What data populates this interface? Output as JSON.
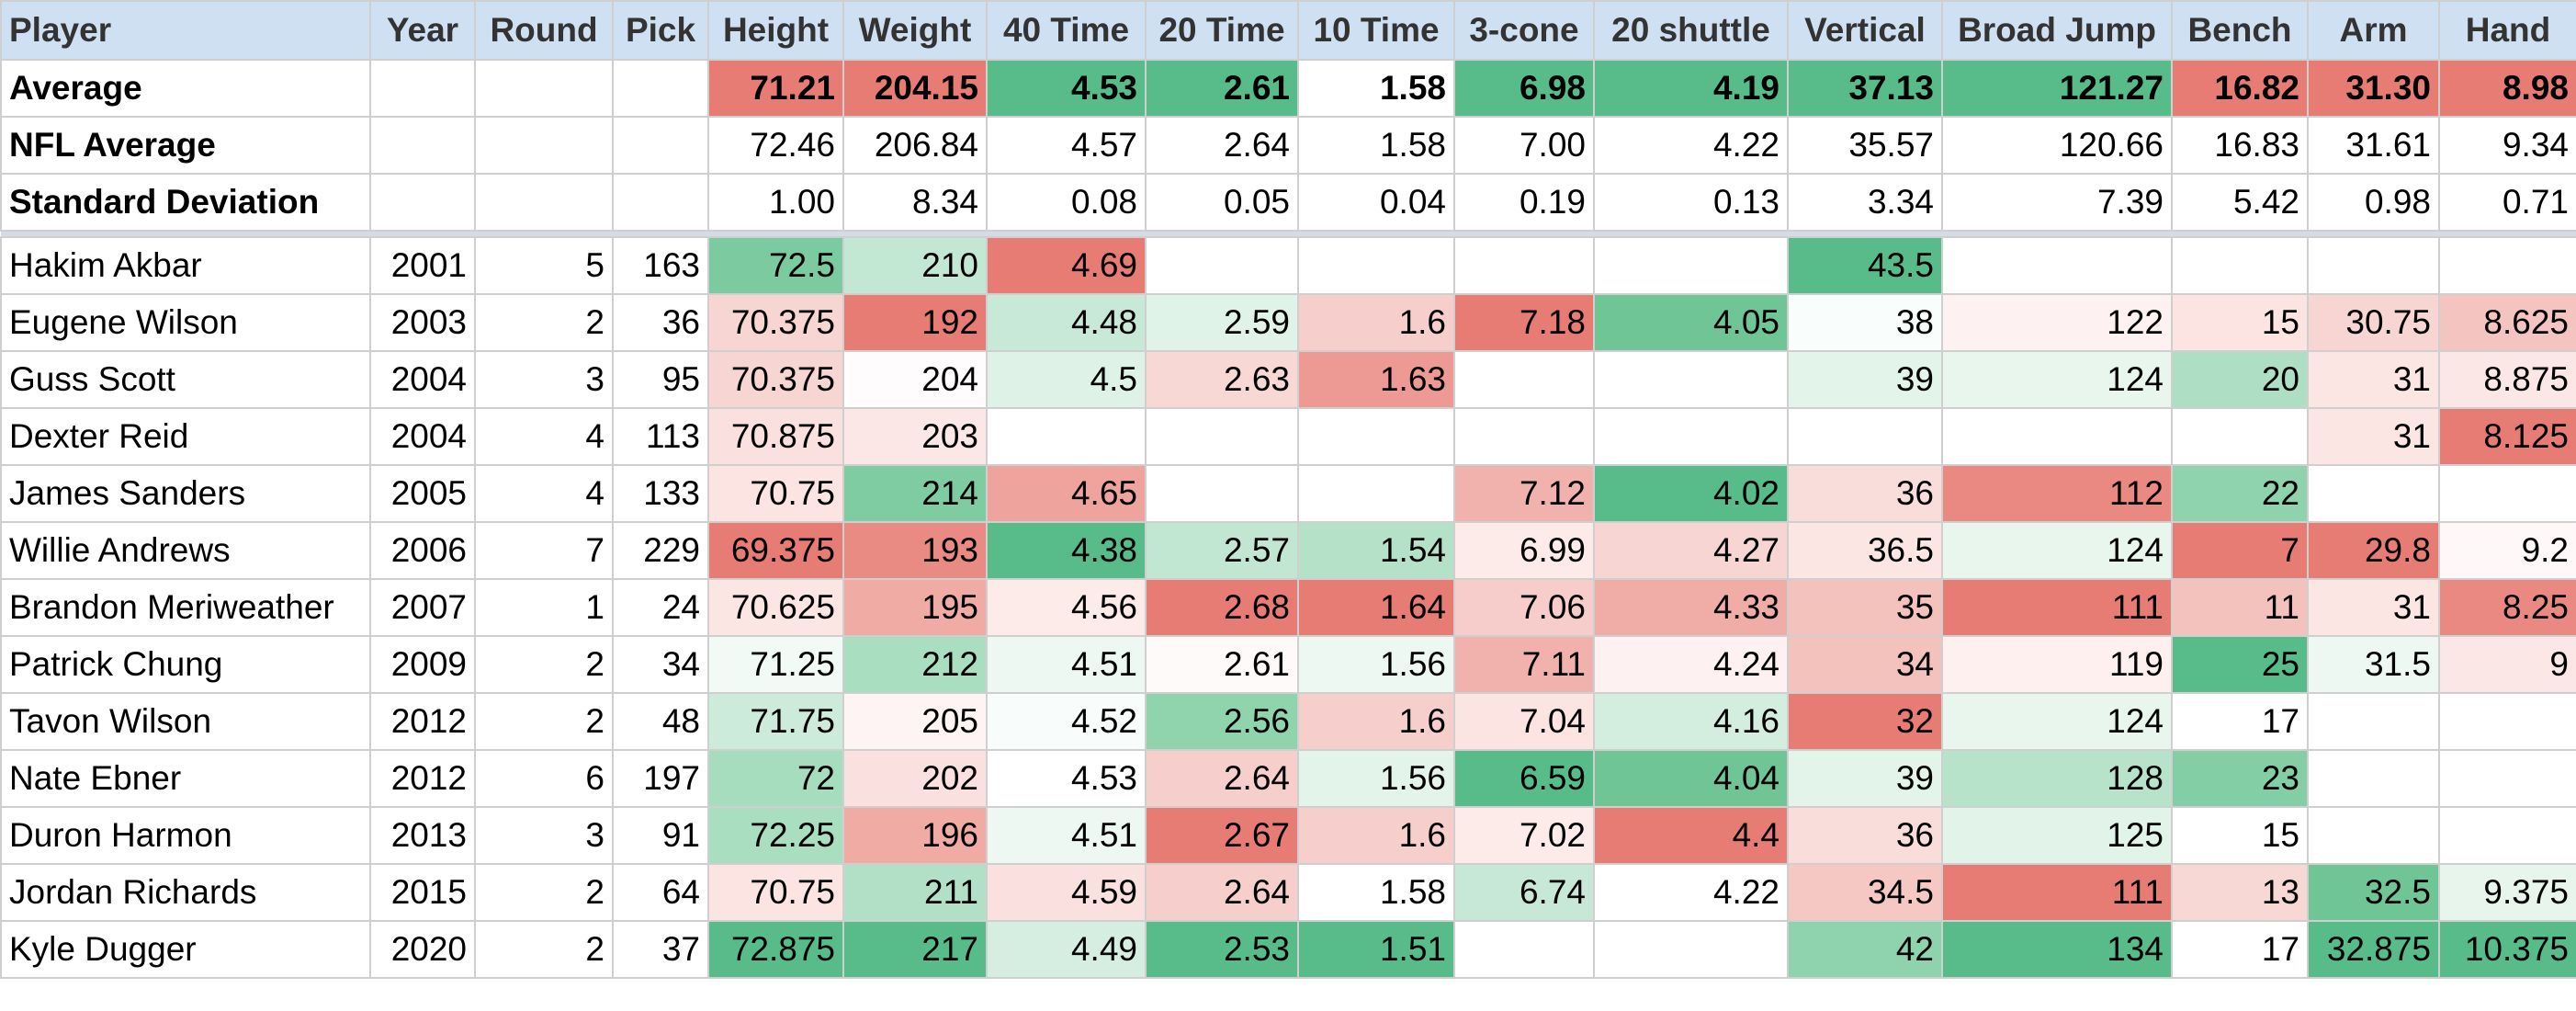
{
  "table": {
    "header": [
      "Player",
      "Year",
      "Round",
      "Pick",
      "Height",
      "Weight",
      "40 Time",
      "20 Time",
      "10 Time",
      "3-cone",
      "20 shuttle",
      "Vertical",
      "Broad Jump",
      "Bench",
      "Arm",
      "Hand"
    ],
    "summary_rows": [
      {
        "cells": [
          "Average",
          null,
          null,
          null,
          "71.21",
          "204.15",
          "4.53",
          "2.61",
          "1.58",
          "6.98",
          "4.19",
          "37.13",
          "121.27",
          "16.82",
          "31.30",
          "8.98"
        ],
        "colors": [
          "#e67c73",
          "#e67c73",
          "#57bb8a",
          "#57bb8a",
          null,
          "#57bb8a",
          "#57bb8a",
          "#57bb8a",
          "#57bb8a",
          "#e67c73",
          "#e67c73",
          "#e67c73"
        ]
      },
      {
        "cells": [
          "NFL Average",
          null,
          null,
          null,
          "72.46",
          "206.84",
          "4.57",
          "2.64",
          "1.58",
          "7.00",
          "4.22",
          "35.57",
          "120.66",
          "16.83",
          "31.61",
          "9.34"
        ],
        "colors": [
          null,
          null,
          null,
          null,
          null,
          null,
          null,
          null,
          null,
          null,
          null,
          null
        ]
      },
      {
        "cells": [
          "Standard Deviation",
          null,
          null,
          null,
          "1.00",
          "8.34",
          "0.08",
          "0.05",
          "0.04",
          "0.19",
          "0.13",
          "3.34",
          "7.39",
          "5.42",
          "0.98",
          "0.71"
        ],
        "colors": [
          null,
          null,
          null,
          null,
          null,
          null,
          null,
          null,
          null,
          null,
          null,
          null
        ]
      }
    ],
    "rows": [
      {
        "cells": [
          "Hakim Akbar",
          "2001",
          "5",
          "163",
          "72.5",
          "210",
          "4.69",
          null,
          null,
          null,
          null,
          "43.5",
          null,
          null,
          null,
          null
        ],
        "colors": [
          "#7ccba0",
          "#c2e7d3",
          "#e67c73",
          null,
          null,
          null,
          null,
          "#57bb8a",
          null,
          null,
          null,
          null
        ]
      },
      {
        "cells": [
          "Eugene Wilson",
          "2003",
          "2",
          "36",
          "70.375",
          "192",
          "4.48",
          "2.59",
          "1.6",
          "7.18",
          "4.05",
          "38",
          "122",
          "15",
          "30.75",
          "8.625"
        ],
        "colors": [
          "#f7d5d2",
          "#e67c73",
          "#c8e9d7",
          "#e0f3e8",
          "#f6cfcc",
          "#e67c73",
          "#6fc596",
          "#f9fdfb",
          "#fdf2f1",
          "#fbe4e2",
          "#f7d5d2",
          "#f4c4c0"
        ]
      },
      {
        "cells": [
          "Guss Scott",
          "2004",
          "3",
          "95",
          "70.375",
          "204",
          "4.5",
          "2.63",
          "1.63",
          null,
          null,
          "39",
          "124",
          "20",
          "31",
          "8.875"
        ],
        "colors": [
          "#f7d5d2",
          "#fefcfc",
          "#def2e7",
          "#f8d8d5",
          "#ec9a93",
          null,
          null,
          "#e3f4ea",
          "#e8f6ee",
          "#aedfc4",
          "#fbe6e4",
          "#fbe8e6"
        ]
      },
      {
        "cells": [
          "Dexter Reid",
          "2004",
          "4",
          "113",
          "70.875",
          "203",
          null,
          null,
          null,
          null,
          null,
          null,
          null,
          null,
          "31",
          "8.125"
        ],
        "colors": [
          "#fae1df",
          "#fbe8e6",
          null,
          null,
          null,
          null,
          null,
          null,
          null,
          null,
          "#fbe6e4",
          "#e67c73"
        ]
      },
      {
        "cells": [
          "James Sanders",
          "2005",
          "4",
          "133",
          "70.75",
          "214",
          "4.65",
          null,
          null,
          "7.12",
          "4.02",
          "36",
          "112",
          "22",
          null,
          null
        ],
        "colors": [
          "#fbe4e2",
          "#7fcca2",
          "#eea39d",
          null,
          null,
          "#f1b2ad",
          "#57bb8a",
          "#f9dddb",
          "#e98981",
          "#8ed3ad",
          null,
          null
        ]
      },
      {
        "cells": [
          "Willie Andrews",
          "2006",
          "7",
          "229",
          "69.375",
          "193",
          "4.38",
          "2.57",
          "1.54",
          "6.99",
          "4.27",
          "36.5",
          "124",
          "7",
          "29.8",
          "9.2"
        ],
        "colors": [
          "#e67c73",
          "#ea8b83",
          "#57bb8a",
          "#c1e6d2",
          "#b4e1c8",
          "#fcebe9",
          "#f7d5d2",
          "#fbe6e4",
          "#e8f6ee",
          "#e67c73",
          "#e67c73",
          "#fef9f8"
        ]
      },
      {
        "cells": [
          "Brandon Meriweather",
          "2007",
          "1",
          "24",
          "70.625",
          "195",
          "4.56",
          "2.68",
          "1.64",
          "7.06",
          "4.33",
          "35",
          "111",
          "11",
          "31",
          "8.25"
        ],
        "colors": [
          "#fbe6e4",
          "#f0aba5",
          "#fcebe9",
          "#e67c73",
          "#e67c73",
          "#f6cdca",
          "#f0aca6",
          "#f4c2bd",
          "#e67c73",
          "#f4c2bd",
          "#fbe6e4",
          "#e98981"
        ]
      },
      {
        "cells": [
          "Patrick Chung",
          "2009",
          "2",
          "34",
          "71.25",
          "212",
          "4.51",
          "2.61",
          "1.56",
          "7.11",
          "4.24",
          "34",
          "119",
          "25",
          "31.5",
          "9"
        ],
        "colors": [
          "#f1faf5",
          "#a9dec1",
          "#eef8f2",
          "#fefafa",
          "#eef8f2",
          "#f1b2ad",
          "#fdf2f1",
          "#f4c2bd",
          "#fdf0ef",
          "#57bb8a",
          "#eef8f2",
          "#fbe8e6"
        ]
      },
      {
        "cells": [
          "Tavon Wilson",
          "2012",
          "2",
          "48",
          "71.75",
          "205",
          "4.52",
          "2.56",
          "1.6",
          "7.04",
          "4.16",
          "32",
          "124",
          "17",
          null,
          null
        ],
        "colors": [
          "#cdebdb",
          "#fdf4f3",
          "#f8fcfa",
          "#90d4ae",
          "#f6cfcc",
          "#fbe4e2",
          "#d3eddf",
          "#e67c73",
          "#e8f6ee",
          null,
          null,
          null
        ]
      },
      {
        "cells": [
          "Nate Ebner",
          "2012",
          "6",
          "197",
          "72",
          "202",
          "4.53",
          "2.64",
          "1.56",
          "6.59",
          "4.04",
          "39",
          "128",
          "23",
          null,
          null
        ],
        "colors": [
          "#a6ddbf",
          "#fae1df",
          null,
          "#f6cfcc",
          "#e3f4ea",
          "#57bb8a",
          "#6fc596",
          "#e3f4ea",
          "#b7e3cb",
          "#83cea5",
          null,
          null
        ]
      },
      {
        "cells": [
          "Duron Harmon",
          "2013",
          "3",
          "91",
          "72.25",
          "196",
          "4.51",
          "2.67",
          "1.6",
          "7.02",
          "4.4",
          "36",
          "125",
          "15",
          null,
          null
        ],
        "colors": [
          "#a9dec1",
          "#f0aba5",
          "#eef8f2",
          "#e67c73",
          "#f6cfcc",
          "#fcebe9",
          "#e67c73",
          "#f9dddb",
          "#e2f3ea",
          null,
          null,
          null
        ]
      },
      {
        "cells": [
          "Jordan Richards",
          "2015",
          "2",
          "64",
          "70.75",
          "211",
          "4.59",
          "2.64",
          "1.58",
          "6.74",
          "4.22",
          "34.5",
          "111",
          "13",
          "32.5",
          "9.375"
        ],
        "colors": [
          "#fbe4e2",
          "#b1e0c6",
          "#fae1df",
          "#f6cfcc",
          null,
          "#c7e8d6",
          null,
          "#f5c8c4",
          "#e67c73",
          "#f8d8d5",
          "#6fc596",
          "#e7f5ed"
        ]
      },
      {
        "cells": [
          "Kyle Dugger",
          "2020",
          "2",
          "37",
          "72.875",
          "217",
          "4.49",
          "2.53",
          "1.51",
          null,
          null,
          "42",
          "134",
          "17",
          "32.875",
          "10.375"
        ],
        "colors": [
          "#57bb8a",
          "#57bb8a",
          "#d5eee1",
          "#57bb8a",
          "#57bb8a",
          null,
          null,
          "#8ed3ad",
          "#57bb8a",
          null,
          "#57bb8a",
          "#57bb8a"
        ]
      }
    ]
  }
}
